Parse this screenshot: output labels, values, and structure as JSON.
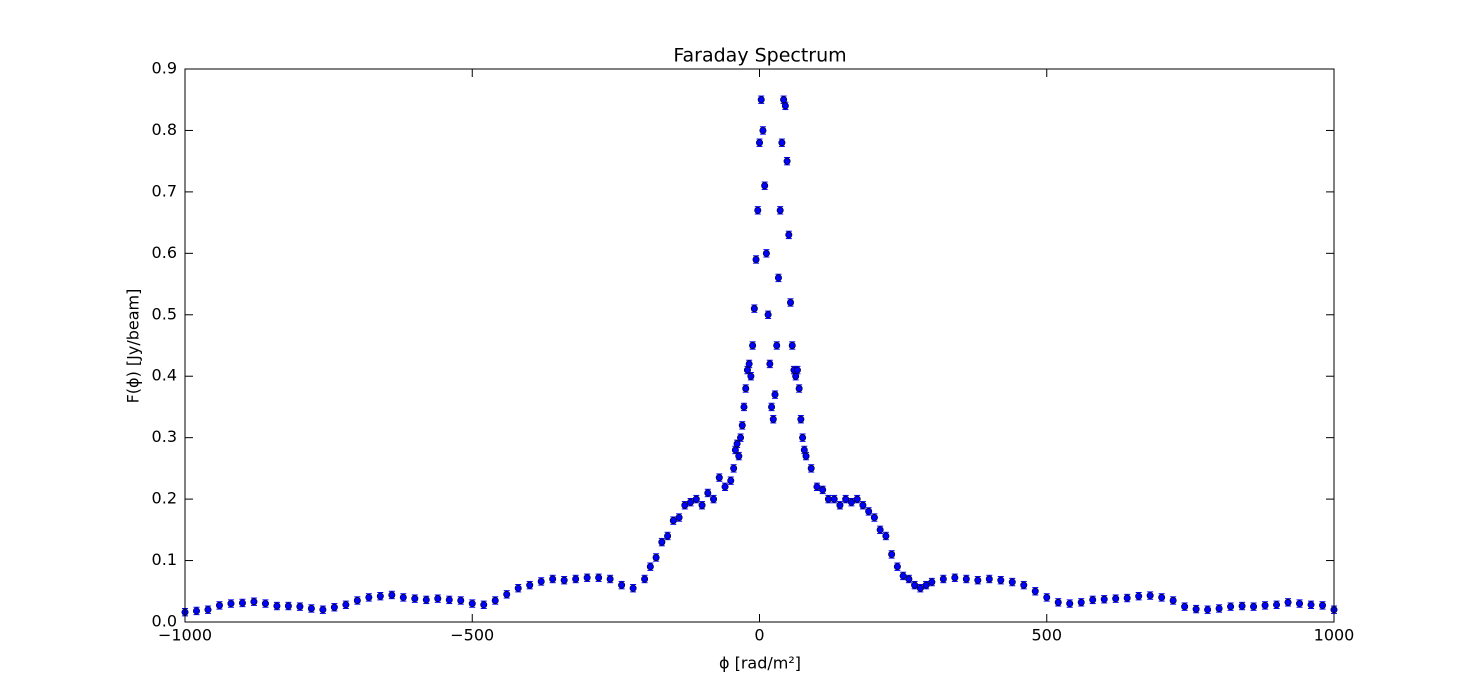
{
  "chart_data": {
    "type": "scatter",
    "title": "Faraday Spectrum",
    "xlabel": "ϕ [rad/m²]",
    "ylabel": "F(ϕ) [Jy/beam]",
    "xlim": [
      -1000,
      1000
    ],
    "ylim": [
      0,
      0.9
    ],
    "xticks": [
      {
        "value": -1000,
        "label": "−1000"
      },
      {
        "value": -500,
        "label": "−500"
      },
      0,
      500,
      1000
    ],
    "yticks": [
      {
        "value": 0,
        "label": "0.0"
      },
      0.1,
      0.2,
      0.3,
      0.4,
      0.5,
      0.6,
      0.7,
      0.8,
      0.9
    ],
    "grid": false,
    "series": [
      {
        "color": "#0000ff",
        "yerr": 0.006,
        "x": [
          -1000,
          -980,
          -960,
          -940,
          -920,
          -900,
          -880,
          -860,
          -840,
          -820,
          -800,
          -780,
          -760,
          -740,
          -720,
          -700,
          -680,
          -660,
          -640,
          -620,
          -600,
          -580,
          -560,
          -540,
          -520,
          -500,
          -480,
          -460,
          -440,
          -420,
          -400,
          -380,
          -360,
          -340,
          -320,
          -300,
          -280,
          -260,
          -240,
          -220,
          -200,
          -190,
          -180,
          -170,
          -160,
          -150,
          -140,
          -130,
          -120,
          -110,
          -100,
          -90,
          -80,
          -70,
          -60,
          -50,
          -45,
          -42,
          -39,
          -36,
          -33,
          -30,
          -27,
          -24,
          -21,
          -18,
          -15,
          -12,
          -9,
          -6,
          -3,
          0,
          3,
          6,
          9,
          12,
          15,
          18,
          21,
          24,
          27,
          30,
          33,
          36,
          39,
          42,
          45,
          48,
          51,
          54,
          57,
          60,
          63,
          66,
          69,
          72,
          75,
          78,
          81,
          90,
          100,
          110,
          120,
          130,
          140,
          150,
          160,
          170,
          180,
          190,
          200,
          210,
          220,
          230,
          240,
          250,
          260,
          270,
          280,
          290,
          300,
          320,
          340,
          360,
          380,
          400,
          420,
          440,
          460,
          480,
          500,
          520,
          540,
          560,
          580,
          600,
          620,
          640,
          660,
          680,
          700,
          720,
          740,
          760,
          780,
          800,
          820,
          840,
          860,
          880,
          900,
          920,
          940,
          960,
          980,
          1000
        ],
        "values": [
          0.016,
          0.018,
          0.02,
          0.027,
          0.03,
          0.031,
          0.033,
          0.03,
          0.026,
          0.026,
          0.025,
          0.022,
          0.02,
          0.024,
          0.028,
          0.035,
          0.04,
          0.042,
          0.044,
          0.04,
          0.038,
          0.036,
          0.038,
          0.036,
          0.035,
          0.03,
          0.028,
          0.035,
          0.045,
          0.055,
          0.06,
          0.066,
          0.07,
          0.068,
          0.07,
          0.072,
          0.072,
          0.07,
          0.06,
          0.055,
          0.07,
          0.09,
          0.105,
          0.13,
          0.14,
          0.165,
          0.17,
          0.19,
          0.195,
          0.2,
          0.19,
          0.21,
          0.2,
          0.235,
          0.22,
          0.23,
          0.25,
          0.28,
          0.29,
          0.27,
          0.3,
          0.32,
          0.35,
          0.38,
          0.41,
          0.42,
          0.4,
          0.45,
          0.51,
          0.59,
          0.67,
          0.78,
          0.85,
          0.8,
          0.71,
          0.6,
          0.5,
          0.42,
          0.35,
          0.33,
          0.37,
          0.45,
          0.56,
          0.67,
          0.78,
          0.85,
          0.84,
          0.75,
          0.63,
          0.52,
          0.45,
          0.41,
          0.4,
          0.41,
          0.38,
          0.33,
          0.3,
          0.28,
          0.27,
          0.25,
          0.22,
          0.215,
          0.2,
          0.2,
          0.19,
          0.2,
          0.195,
          0.2,
          0.19,
          0.18,
          0.17,
          0.15,
          0.14,
          0.11,
          0.09,
          0.075,
          0.07,
          0.06,
          0.055,
          0.06,
          0.065,
          0.07,
          0.072,
          0.07,
          0.068,
          0.07,
          0.068,
          0.065,
          0.06,
          0.05,
          0.04,
          0.032,
          0.03,
          0.032,
          0.036,
          0.037,
          0.038,
          0.039,
          0.042,
          0.043,
          0.04,
          0.035,
          0.025,
          0.021,
          0.02,
          0.022,
          0.025,
          0.026,
          0.025,
          0.027,
          0.028,
          0.032,
          0.03,
          0.028,
          0.027,
          0.02
        ]
      }
    ]
  }
}
